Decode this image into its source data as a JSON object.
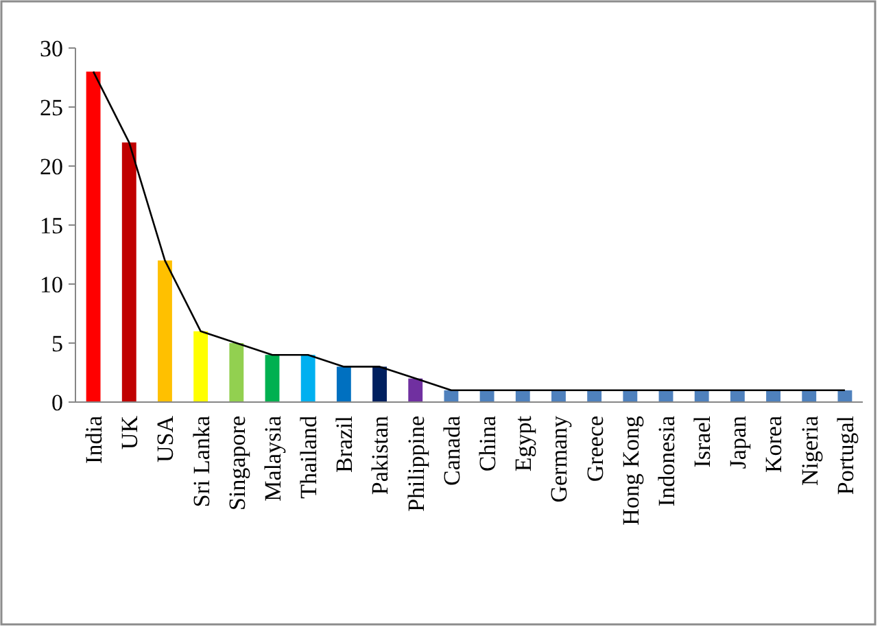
{
  "chart_data": {
    "type": "bar",
    "categories": [
      "India",
      "UK",
      "USA",
      "Sri Lanka",
      "Singapore",
      "Malaysia",
      "Thailand",
      "Brazil",
      "Pakistan",
      "Philippine",
      "Canada",
      "China",
      "Egypt",
      "Germany",
      "Greece",
      "Hong Kong",
      "Indonesia",
      "Israel",
      "Japan",
      "Korea",
      "Nigeria",
      "Portugal"
    ],
    "series": [
      {
        "colors": [
          "#ff0000",
          "#c00000",
          "#ffc000",
          "#ffff00",
          "#92d050",
          "#00b050",
          "#00b0f0",
          "#0070c0",
          "#002060",
          "#7030a0",
          "#4f81bd",
          "#4f81bd",
          "#4f81bd",
          "#4f81bd",
          "#4f81bd",
          "#4f81bd",
          "#4f81bd",
          "#4f81bd",
          "#4f81bd",
          "#4f81bd",
          "#4f81bd",
          "#4f81bd"
        ],
        "values": [
          28,
          22,
          12,
          6,
          5,
          4,
          4,
          3,
          3,
          2,
          1,
          1,
          1,
          1,
          1,
          1,
          1,
          1,
          1,
          1,
          1,
          1
        ]
      },
      {
        "type": "line",
        "color": "#000000",
        "values": [
          28,
          22,
          12,
          6,
          5,
          4,
          4,
          3,
          3,
          2,
          1,
          1,
          1,
          1,
          1,
          1,
          1,
          1,
          1,
          1,
          1,
          1
        ]
      }
    ],
    "ylim": [
      0,
      30
    ],
    "yticks": [
      0,
      5,
      10,
      15,
      20,
      25,
      30
    ],
    "grid": false,
    "marker": "none",
    "line_style": "solid"
  }
}
